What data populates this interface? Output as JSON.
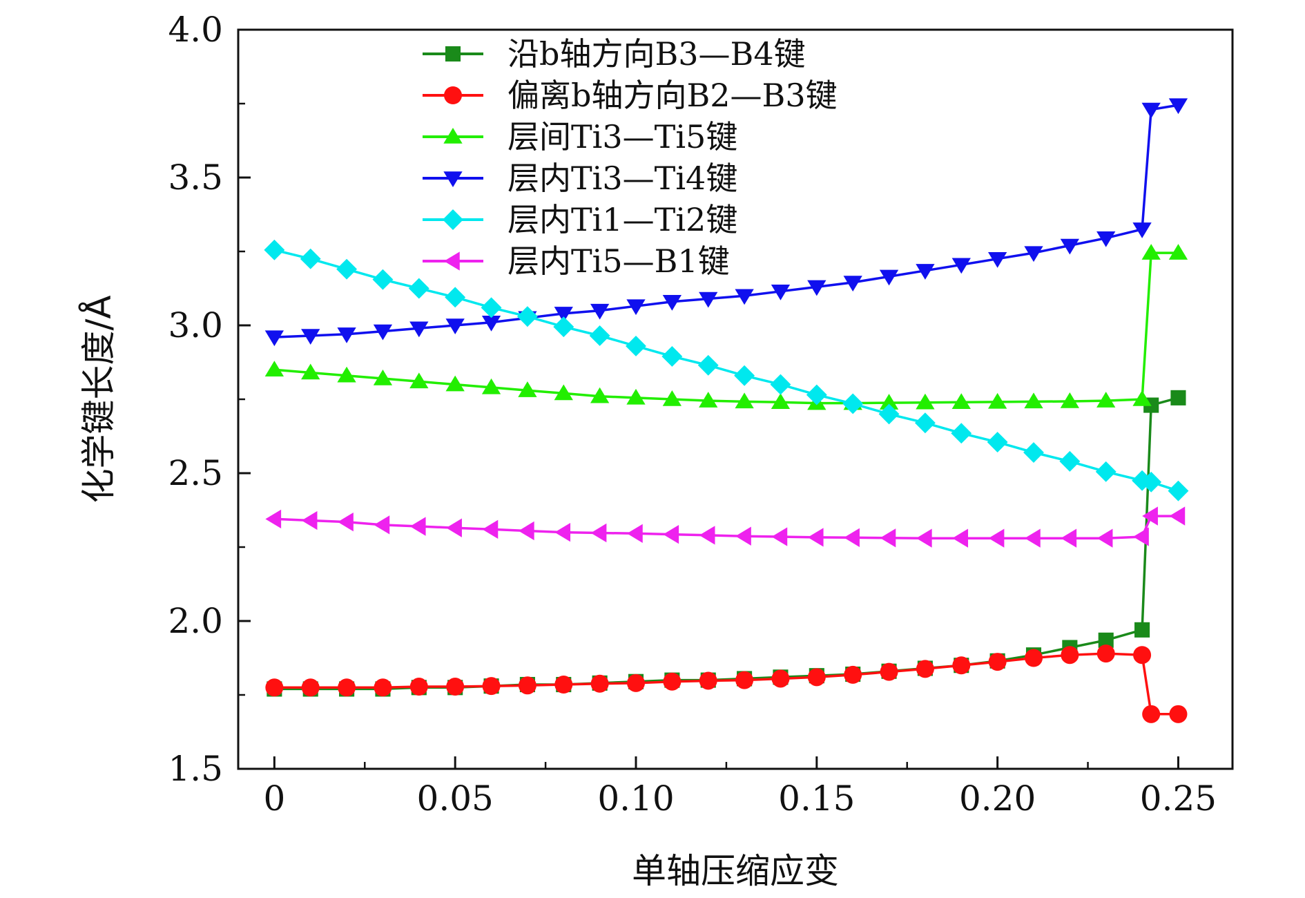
{
  "chart_data": {
    "type": "line",
    "xlabel": "单轴压缩应变",
    "ylabel": "化学键长度/Å",
    "xlim": [
      -0.01,
      0.265
    ],
    "ylim": [
      1.5,
      4.0
    ],
    "x_ticks": [
      0,
      0.05,
      0.1,
      0.15,
      0.2,
      0.25
    ],
    "x_tick_labels": [
      "0",
      "0.05",
      "0.10",
      "0.15",
      "0.20",
      "0.25"
    ],
    "y_ticks": [
      1.5,
      2.0,
      2.5,
      3.0,
      3.5,
      4.0
    ],
    "y_tick_labels": [
      "1.5",
      "2.0",
      "2.5",
      "3.0",
      "3.5",
      "4.0"
    ],
    "legend_position": "top-center",
    "grid": false,
    "x": [
      0,
      0.01,
      0.02,
      0.03,
      0.04,
      0.05,
      0.06,
      0.07,
      0.08,
      0.09,
      0.1,
      0.11,
      0.12,
      0.13,
      0.14,
      0.15,
      0.16,
      0.17,
      0.18,
      0.19,
      0.2,
      0.21,
      0.22,
      0.23,
      0.24,
      0.2425,
      0.25
    ],
    "series": [
      {
        "name": "沿b轴方向B3—B4键",
        "color": "#1a8a1a",
        "marker": "square",
        "values": [
          1.77,
          1.77,
          1.77,
          1.77,
          1.775,
          1.775,
          1.78,
          1.785,
          1.785,
          1.79,
          1.795,
          1.8,
          1.8,
          1.805,
          1.81,
          1.815,
          1.82,
          1.83,
          1.84,
          1.85,
          1.865,
          1.885,
          1.91,
          1.935,
          1.97,
          2.73,
          2.755
        ]
      },
      {
        "name": "偏离b轴方向B2—B3键",
        "color": "#ff1010",
        "marker": "circle",
        "values": [
          1.775,
          1.775,
          1.775,
          1.775,
          1.778,
          1.778,
          1.78,
          1.782,
          1.785,
          1.788,
          1.79,
          1.795,
          1.798,
          1.8,
          1.805,
          1.81,
          1.818,
          1.828,
          1.838,
          1.85,
          1.862,
          1.875,
          1.885,
          1.89,
          1.885,
          1.685,
          1.685
        ]
      },
      {
        "name": "层间Ti3—Ti5键",
        "color": "#22ee00",
        "marker": "triangle-up",
        "values": [
          2.85,
          2.84,
          2.83,
          2.82,
          2.81,
          2.8,
          2.79,
          2.78,
          2.77,
          2.76,
          2.755,
          2.75,
          2.745,
          2.742,
          2.74,
          2.737,
          2.737,
          2.738,
          2.739,
          2.74,
          2.741,
          2.742,
          2.743,
          2.745,
          2.75,
          3.245,
          3.245
        ]
      },
      {
        "name": "层内Ti3—Ti4键",
        "color": "#1010ee",
        "marker": "triangle-down",
        "values": [
          2.96,
          2.965,
          2.97,
          2.98,
          2.99,
          3.0,
          3.01,
          3.025,
          3.04,
          3.05,
          3.065,
          3.08,
          3.09,
          3.1,
          3.115,
          3.13,
          3.145,
          3.165,
          3.185,
          3.205,
          3.225,
          3.245,
          3.27,
          3.295,
          3.325,
          3.73,
          3.745
        ]
      },
      {
        "name": "层内Ti1—Ti2键",
        "color": "#00e8ee",
        "marker": "diamond",
        "values": [
          3.255,
          3.225,
          3.19,
          3.155,
          3.125,
          3.095,
          3.06,
          3.03,
          2.995,
          2.965,
          2.93,
          2.895,
          2.865,
          2.83,
          2.8,
          2.765,
          2.735,
          2.7,
          2.67,
          2.635,
          2.605,
          2.57,
          2.54,
          2.505,
          2.475,
          2.47,
          2.44
        ]
      },
      {
        "name": "层内Ti5—B1键",
        "color": "#ee22ee",
        "marker": "triangle-left",
        "values": [
          2.345,
          2.34,
          2.335,
          2.325,
          2.32,
          2.315,
          2.31,
          2.305,
          2.3,
          2.298,
          2.296,
          2.293,
          2.29,
          2.287,
          2.285,
          2.283,
          2.282,
          2.281,
          2.28,
          2.28,
          2.28,
          2.28,
          2.28,
          2.28,
          2.285,
          2.355,
          2.355
        ]
      }
    ]
  }
}
